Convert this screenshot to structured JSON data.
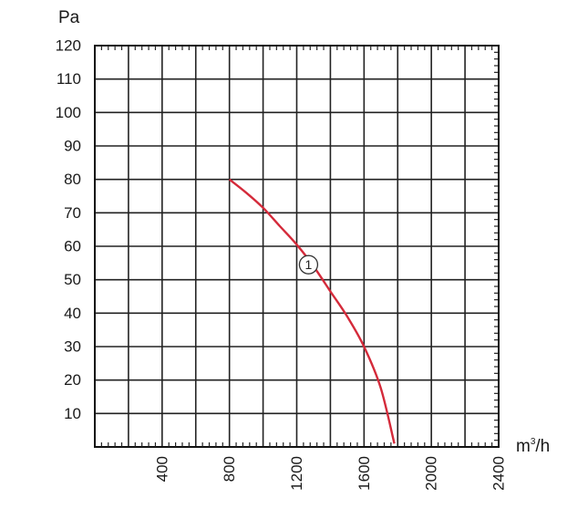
{
  "chart_data": {
    "type": "line",
    "title": "",
    "ylabel": "Pa",
    "xlabel": "m³/h",
    "xlim": [
      0,
      2400
    ],
    "ylim": [
      0,
      120
    ],
    "x_ticks": [
      "400",
      "800",
      "1200",
      "1600",
      "2000",
      "2400"
    ],
    "y_ticks": [
      "10",
      "20",
      "30",
      "40",
      "50",
      "60",
      "70",
      "80",
      "90",
      "100",
      "110",
      "120"
    ],
    "grid": true,
    "series": [
      {
        "marker_label": "1",
        "color": "#d42a3a",
        "x": [
          800,
          900,
          1000,
          1100,
          1200,
          1300,
          1400,
          1500,
          1600,
          1700,
          1780
        ],
        "y": [
          80,
          76,
          71.5,
          66,
          60.5,
          54,
          46.5,
          39,
          30,
          17.5,
          1
        ]
      }
    ]
  }
}
